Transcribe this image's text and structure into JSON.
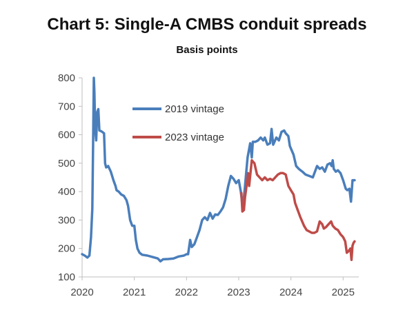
{
  "chart_data": {
    "type": "line",
    "title": "Chart 5: Single-A CMBS conduit spreads",
    "subtitle": "Basis points",
    "xlabel": "",
    "ylabel": "",
    "xlim": [
      2020,
      2025.3
    ],
    "ylim": [
      100,
      800
    ],
    "x_ticks": [
      "2020",
      "2021",
      "2022",
      "2023",
      "2024",
      "2025"
    ],
    "y_ticks": [
      "100",
      "200",
      "300",
      "400",
      "500",
      "600",
      "700",
      "800"
    ],
    "grid": false,
    "legend_position": "upper-center",
    "series": [
      {
        "name": "2019 vintage",
        "color": "#4a7ebb",
        "points": [
          [
            2020.0,
            180
          ],
          [
            2020.05,
            175
          ],
          [
            2020.1,
            168
          ],
          [
            2020.14,
            175
          ],
          [
            2020.17,
            240
          ],
          [
            2020.195,
            340
          ],
          [
            2020.21,
            560
          ],
          [
            2020.225,
            800
          ],
          [
            2020.235,
            750
          ],
          [
            2020.25,
            620
          ],
          [
            2020.27,
            580
          ],
          [
            2020.29,
            680
          ],
          [
            2020.31,
            690
          ],
          [
            2020.33,
            615
          ],
          [
            2020.37,
            612
          ],
          [
            2020.42,
            605
          ],
          [
            2020.44,
            500
          ],
          [
            2020.46,
            485
          ],
          [
            2020.5,
            490
          ],
          [
            2020.55,
            470
          ],
          [
            2020.6,
            440
          ],
          [
            2020.64,
            420
          ],
          [
            2020.66,
            405
          ],
          [
            2020.7,
            400
          ],
          [
            2020.75,
            390
          ],
          [
            2020.8,
            385
          ],
          [
            2020.85,
            370
          ],
          [
            2020.88,
            350
          ],
          [
            2020.92,
            300
          ],
          [
            2020.96,
            280
          ],
          [
            2021.0,
            280
          ],
          [
            2021.03,
            230
          ],
          [
            2021.06,
            200
          ],
          [
            2021.1,
            185
          ],
          [
            2021.15,
            178
          ],
          [
            2021.25,
            175
          ],
          [
            2021.35,
            170
          ],
          [
            2021.45,
            165
          ],
          [
            2021.5,
            155
          ],
          [
            2021.55,
            162
          ],
          [
            2021.65,
            163
          ],
          [
            2021.75,
            165
          ],
          [
            2021.85,
            172
          ],
          [
            2021.95,
            175
          ],
          [
            2022.0,
            180
          ],
          [
            2022.03,
            180
          ],
          [
            2022.07,
            230
          ],
          [
            2022.1,
            205
          ],
          [
            2022.15,
            215
          ],
          [
            2022.2,
            240
          ],
          [
            2022.25,
            265
          ],
          [
            2022.3,
            300
          ],
          [
            2022.35,
            310
          ],
          [
            2022.4,
            300
          ],
          [
            2022.45,
            325
          ],
          [
            2022.5,
            305
          ],
          [
            2022.55,
            320
          ],
          [
            2022.6,
            318
          ],
          [
            2022.65,
            330
          ],
          [
            2022.7,
            345
          ],
          [
            2022.75,
            375
          ],
          [
            2022.8,
            420
          ],
          [
            2022.85,
            455
          ],
          [
            2022.9,
            445
          ],
          [
            2022.95,
            430
          ],
          [
            2023.0,
            440
          ],
          [
            2023.04,
            400
          ],
          [
            2023.08,
            340
          ],
          [
            2023.12,
            420
          ],
          [
            2023.17,
            520
          ],
          [
            2023.22,
            570
          ],
          [
            2023.25,
            520
          ],
          [
            2023.27,
            575
          ],
          [
            2023.32,
            575
          ],
          [
            2023.37,
            580
          ],
          [
            2023.42,
            590
          ],
          [
            2023.47,
            580
          ],
          [
            2023.5,
            590
          ],
          [
            2023.55,
            565
          ],
          [
            2023.6,
            570
          ],
          [
            2023.63,
            620
          ],
          [
            2023.66,
            565
          ],
          [
            2023.72,
            590
          ],
          [
            2023.77,
            580
          ],
          [
            2023.82,
            610
          ],
          [
            2023.87,
            615
          ],
          [
            2023.9,
            605
          ],
          [
            2023.95,
            595
          ],
          [
            2023.98,
            560
          ],
          [
            2024.05,
            530
          ],
          [
            2024.1,
            490
          ],
          [
            2024.15,
            480
          ],
          [
            2024.22,
            470
          ],
          [
            2024.28,
            460
          ],
          [
            2024.35,
            455
          ],
          [
            2024.42,
            450
          ],
          [
            2024.5,
            490
          ],
          [
            2024.55,
            480
          ],
          [
            2024.6,
            485
          ],
          [
            2024.65,
            470
          ],
          [
            2024.7,
            495
          ],
          [
            2024.75,
            500
          ],
          [
            2024.78,
            490
          ],
          [
            2024.8,
            510
          ],
          [
            2024.82,
            480
          ],
          [
            2024.86,
            470
          ],
          [
            2024.9,
            475
          ],
          [
            2024.95,
            465
          ],
          [
            2025.0,
            440
          ],
          [
            2025.05,
            410
          ],
          [
            2025.08,
            405
          ],
          [
            2025.12,
            410
          ],
          [
            2025.15,
            365
          ],
          [
            2025.18,
            440
          ],
          [
            2025.22,
            440
          ]
        ]
      },
      {
        "name": "2023 vintage",
        "color": "#be4b48",
        "points": [
          [
            2023.05,
            395
          ],
          [
            2023.07,
            330
          ],
          [
            2023.1,
            335
          ],
          [
            2023.12,
            380
          ],
          [
            2023.15,
            420
          ],
          [
            2023.18,
            465
          ],
          [
            2023.2,
            420
          ],
          [
            2023.25,
            510
          ],
          [
            2023.3,
            500
          ],
          [
            2023.35,
            460
          ],
          [
            2023.4,
            450
          ],
          [
            2023.45,
            440
          ],
          [
            2023.5,
            450
          ],
          [
            2023.55,
            440
          ],
          [
            2023.6,
            445
          ],
          [
            2023.65,
            440
          ],
          [
            2023.7,
            450
          ],
          [
            2023.75,
            460
          ],
          [
            2023.8,
            465
          ],
          [
            2023.85,
            465
          ],
          [
            2023.9,
            460
          ],
          [
            2023.95,
            420
          ],
          [
            2024.0,
            405
          ],
          [
            2024.05,
            390
          ],
          [
            2024.08,
            360
          ],
          [
            2024.12,
            340
          ],
          [
            2024.18,
            310
          ],
          [
            2024.25,
            280
          ],
          [
            2024.3,
            265
          ],
          [
            2024.35,
            260
          ],
          [
            2024.4,
            255
          ],
          [
            2024.45,
            255
          ],
          [
            2024.5,
            260
          ],
          [
            2024.55,
            295
          ],
          [
            2024.6,
            285
          ],
          [
            2024.63,
            270
          ],
          [
            2024.67,
            275
          ],
          [
            2024.72,
            285
          ],
          [
            2024.77,
            295
          ],
          [
            2024.8,
            280
          ],
          [
            2024.85,
            270
          ],
          [
            2024.9,
            265
          ],
          [
            2024.95,
            250
          ],
          [
            2025.0,
            240
          ],
          [
            2025.04,
            225
          ],
          [
            2025.07,
            185
          ],
          [
            2025.1,
            190
          ],
          [
            2025.14,
            200
          ],
          [
            2025.16,
            160
          ],
          [
            2025.18,
            210
          ],
          [
            2025.2,
            220
          ],
          [
            2025.22,
            225
          ]
        ]
      }
    ]
  }
}
